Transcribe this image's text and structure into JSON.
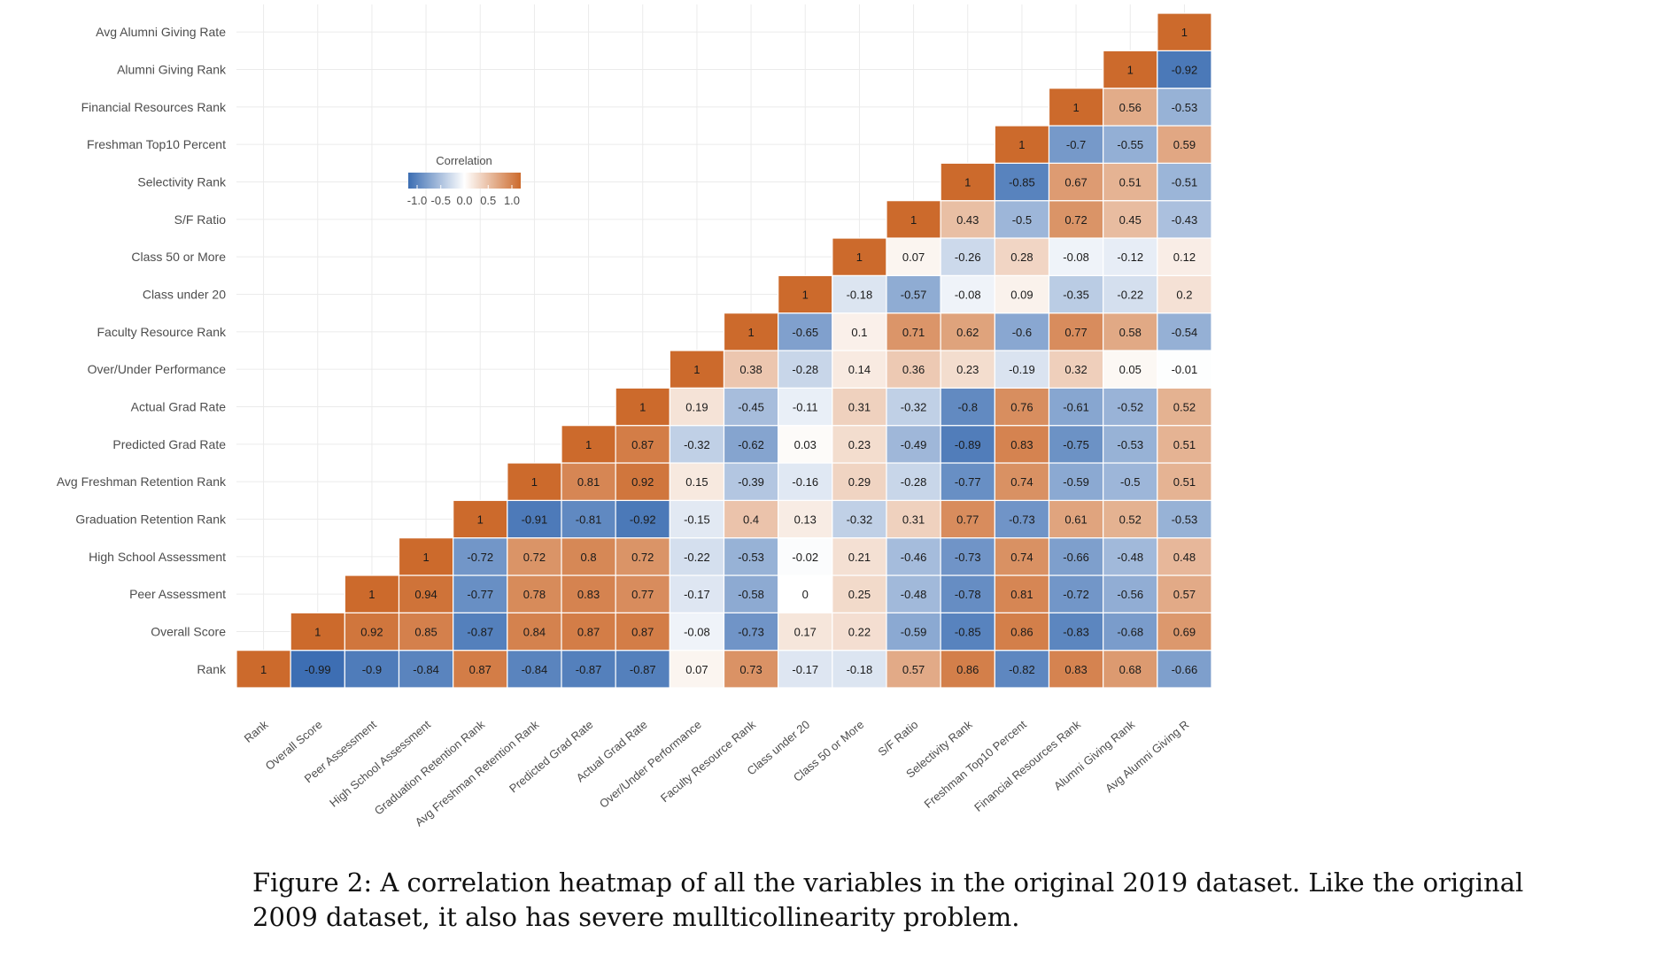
{
  "chart_data": {
    "type": "heatmap",
    "title": "",
    "xlabel": "",
    "ylabel": "",
    "variables": [
      "Rank",
      "Overall Score",
      "Peer Assessment",
      "High School Assessment",
      "Graduation Retention Rank",
      "Avg Freshman Retention Rank",
      "Predicted Grad Rate",
      "Actual Grad Rate",
      "Over/Under Performance",
      "Faculty Resource Rank",
      "Class under 20",
      "Class 50 or More",
      "S/F Ratio",
      "Selectivity Rank",
      "Freshman Top10 Percent",
      "Financial Resources Rank",
      "Alumni Giving Rank",
      "Avg Alumni Giving Rate"
    ],
    "x_tick_labels": [
      "Rank",
      "Overall Score",
      "Peer Assessment",
      "High School Assessment",
      "Graduation Retention Rank",
      "Avg Freshman Retention Rank",
      "Predicted Grad Rate",
      "Actual Grad Rate",
      "Over/Under Performance",
      "Faculty Resource Rank",
      "Class under 20",
      "Class 50 or More",
      "S/F Ratio",
      "Selectivity Rank",
      "Freshman Top10 Percent",
      "Financial Resources Rank",
      "Alumni Giving Rank",
      "Avg Alumni Giving R"
    ],
    "matrix_upper_by_column": [
      [
        1
      ],
      [
        -0.99,
        1
      ],
      [
        -0.9,
        0.92,
        1
      ],
      [
        -0.84,
        0.85,
        0.94,
        1
      ],
      [
        0.87,
        -0.87,
        -0.77,
        -0.72,
        1
      ],
      [
        -0.84,
        0.84,
        0.78,
        0.72,
        -0.91,
        1
      ],
      [
        -0.87,
        0.87,
        0.83,
        0.8,
        -0.81,
        0.81,
        1
      ],
      [
        -0.87,
        0.87,
        0.77,
        0.72,
        -0.92,
        0.92,
        0.87,
        1
      ],
      [
        0.07,
        -0.08,
        -0.17,
        -0.22,
        -0.15,
        0.15,
        -0.32,
        0.19,
        1
      ],
      [
        0.73,
        -0.73,
        -0.58,
        -0.53,
        0.4,
        -0.39,
        -0.62,
        -0.45,
        0.38,
        1
      ],
      [
        -0.17,
        0.17,
        0,
        -0.02,
        0.13,
        -0.16,
        0.03,
        -0.11,
        -0.28,
        -0.65,
        1
      ],
      [
        -0.18,
        0.22,
        0.25,
        0.21,
        -0.32,
        0.29,
        0.23,
        0.31,
        0.14,
        0.1,
        -0.18,
        1
      ],
      [
        0.57,
        -0.59,
        -0.48,
        -0.46,
        0.31,
        -0.28,
        -0.49,
        -0.32,
        0.36,
        0.71,
        -0.57,
        0.07,
        1
      ],
      [
        0.86,
        -0.85,
        -0.78,
        -0.73,
        0.77,
        -0.77,
        -0.89,
        -0.8,
        0.23,
        0.62,
        -0.08,
        -0.26,
        0.43,
        1
      ],
      [
        -0.82,
        0.86,
        0.81,
        0.74,
        -0.73,
        0.74,
        0.83,
        0.76,
        -0.19,
        -0.6,
        0.09,
        0.28,
        -0.5,
        -0.85,
        1
      ],
      [
        0.83,
        -0.83,
        -0.72,
        -0.66,
        0.61,
        -0.59,
        -0.75,
        -0.61,
        0.32,
        0.77,
        -0.35,
        -0.08,
        0.72,
        0.67,
        -0.7,
        1
      ],
      [
        0.68,
        -0.68,
        -0.56,
        -0.48,
        0.52,
        -0.5,
        -0.53,
        -0.52,
        0.05,
        0.58,
        -0.22,
        -0.12,
        0.45,
        0.51,
        -0.55,
        0.56,
        1
      ],
      [
        -0.66,
        0.69,
        0.57,
        0.48,
        -0.53,
        0.51,
        0.51,
        0.52,
        -0.01,
        -0.54,
        0.2,
        0.12,
        -0.43,
        -0.51,
        0.59,
        -0.53,
        -0.92,
        1
      ]
    ],
    "color_scale": {
      "low": "#3b6db2",
      "mid": "#ffffff",
      "high": "#cc6a2c",
      "domain": [
        -1,
        0,
        1
      ]
    },
    "legend": {
      "title": "Correlation",
      "ticks": [
        "-1.0",
        "-0.5",
        "0.0",
        "0.5",
        "1.0"
      ],
      "placement": "top-left inside"
    },
    "grid": true
  },
  "caption": {
    "line1": "Figure 2: A correlation heatmap of all the variables in the original 2019 dataset. Like the original",
    "line2": "2009 dataset, it also has severe mullticollinearity problem."
  }
}
